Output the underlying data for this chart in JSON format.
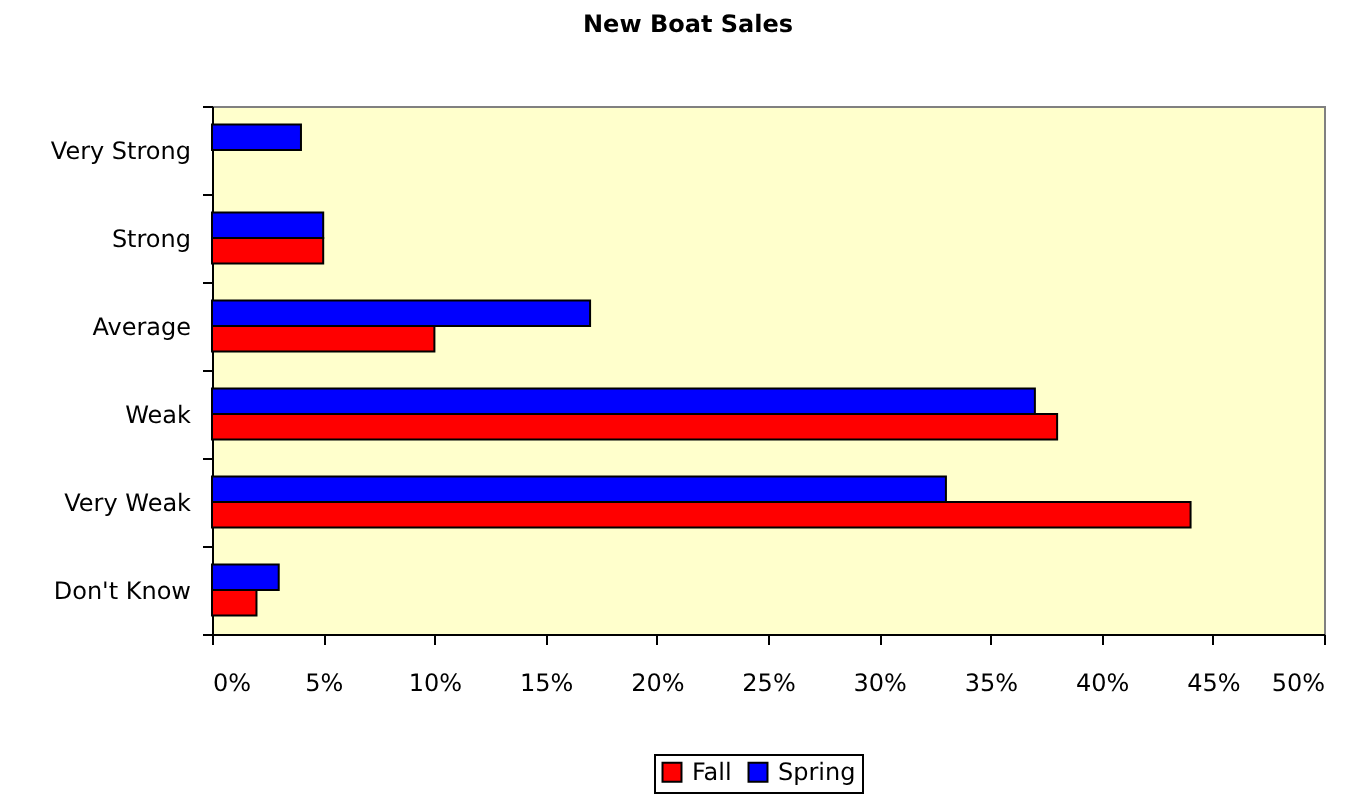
{
  "chart_data": {
    "type": "bar",
    "orientation": "horizontal",
    "title": "New Boat Sales",
    "categories": [
      "Very Strong",
      "Strong",
      "Average",
      "Weak",
      "Very Weak",
      "Don't Know"
    ],
    "series": [
      {
        "name": "Fall",
        "color": "#ff0000",
        "values": [
          null,
          5,
          10,
          38,
          44,
          2
        ]
      },
      {
        "name": "Spring",
        "color": "#0000ff",
        "values": [
          4,
          5,
          17,
          37,
          33,
          3
        ]
      }
    ],
    "xlim": [
      0,
      50
    ],
    "xticks": [
      {
        "value": 0,
        "label": "0%"
      },
      {
        "value": 5,
        "label": "5%"
      },
      {
        "value": 10,
        "label": "10%"
      },
      {
        "value": 15,
        "label": "15%"
      },
      {
        "value": 20,
        "label": "20%"
      },
      {
        "value": 25,
        "label": "25%"
      },
      {
        "value": 30,
        "label": "30%"
      },
      {
        "value": 35,
        "label": "35%"
      },
      {
        "value": 40,
        "label": "40%"
      },
      {
        "value": 45,
        "label": "45%"
      },
      {
        "value": 50,
        "label": "50%"
      }
    ],
    "legend": "bottom",
    "grid": false
  }
}
